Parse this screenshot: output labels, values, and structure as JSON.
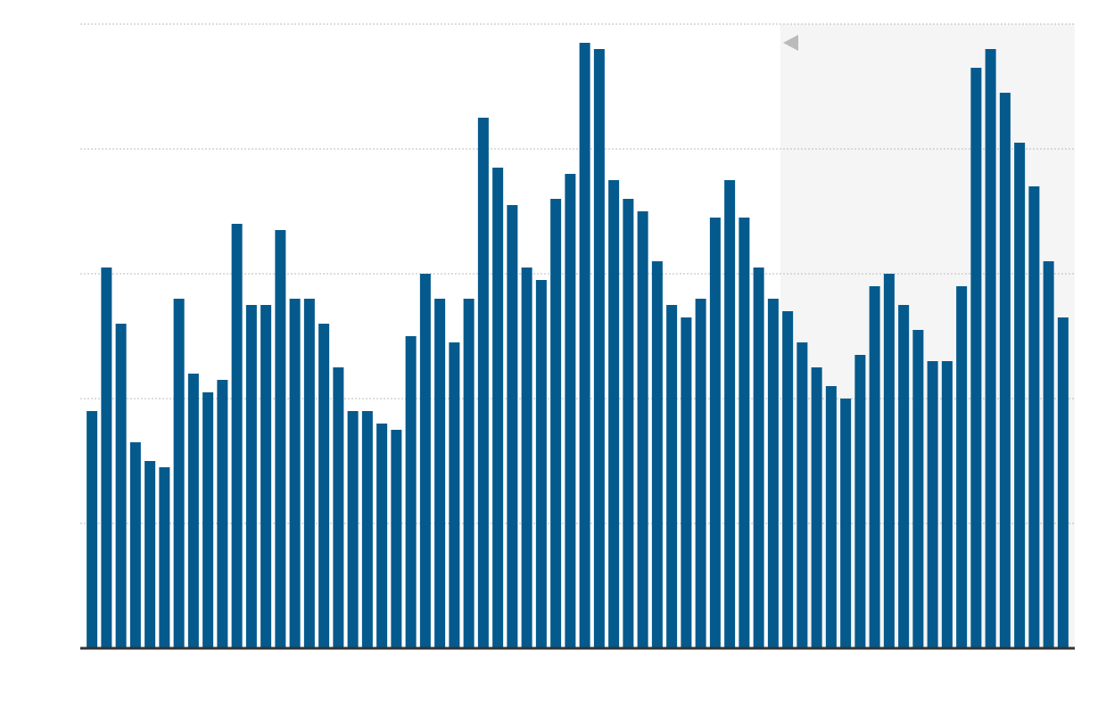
{
  "chart_data": {
    "type": "bar",
    "categories": [
      null,
      null,
      null,
      null,
      null,
      null,
      null,
      null,
      null,
      null,
      null,
      null,
      null,
      null,
      null,
      null,
      null,
      null,
      null,
      null,
      null,
      null,
      null,
      null,
      null,
      null,
      null,
      null,
      null,
      null,
      null,
      null,
      null,
      null,
      null,
      null,
      null,
      null,
      null,
      null,
      null,
      null,
      null,
      null,
      null,
      null,
      null,
      null,
      null,
      null,
      null,
      null,
      null,
      null,
      null,
      null,
      null,
      null,
      null,
      null,
      null,
      null,
      null,
      null,
      null,
      null,
      null,
      null
    ],
    "values": [
      1.9,
      3.05,
      2.6,
      1.65,
      1.5,
      1.45,
      2.8,
      2.2,
      2.05,
      2.15,
      3.4,
      2.75,
      2.75,
      3.35,
      2.8,
      2.8,
      2.6,
      2.25,
      1.9,
      1.9,
      1.8,
      1.75,
      2.5,
      3.0,
      2.8,
      2.45,
      2.8,
      4.25,
      3.85,
      3.55,
      3.05,
      2.95,
      3.6,
      3.8,
      4.85,
      4.8,
      3.75,
      3.6,
      3.5,
      3.1,
      2.75,
      2.65,
      2.8,
      3.45,
      3.75,
      3.45,
      3.05,
      2.8,
      2.7,
      2.45,
      2.25,
      2.1,
      2.0,
      2.35,
      2.9,
      3.0,
      2.75,
      2.55,
      2.3,
      2.3,
      2.9,
      4.65,
      4.8,
      4.45,
      4.05,
      3.7,
      3.1,
      2.65
    ],
    "color": "#045a8d",
    "ylim": [
      0,
      5
    ],
    "yticks": [
      0,
      1,
      2,
      3,
      4,
      5
    ],
    "grid": true,
    "highlight_from_index": 48,
    "highlight_color": "#f5f5f5"
  }
}
